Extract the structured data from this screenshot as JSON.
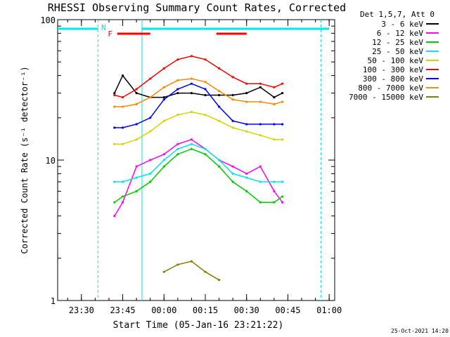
{
  "chart_data": {
    "type": "line",
    "title": "RHESSI Observing Summary Count Rates, Corrected",
    "xlabel": "Start Time (05-Jan-16 23:21:22)",
    "ylabel": "Corrected Count Rate (s⁻¹ detector⁻¹)",
    "y_scale": "log",
    "ylim": [
      1,
      100
    ],
    "xlim": [
      "05-Jan-16 23:21:22",
      "06-Jan-16 01:02:00"
    ],
    "x_ticks": [
      "23:30",
      "23:45",
      "00:00",
      "00:15",
      "00:30",
      "00:45",
      "01:00"
    ],
    "y_ticks": [
      "1",
      "10",
      "100"
    ],
    "grid": false,
    "legend_title": "Det 1,5,7, Att 0",
    "legend_position": "top-right",
    "footer_date": "25-Oct-2021 14:20",
    "markers": {
      "flare_label": "F",
      "night_label": "N",
      "flare_intervals": [
        [
          "23:43",
          "23:55"
        ],
        [
          "00:19",
          "00:30"
        ]
      ],
      "night_intervals": [
        [
          "23:21:22",
          "23:36"
        ],
        [
          "23:52",
          "01:00"
        ]
      ],
      "saa_lines_solid": [
        "23:52"
      ],
      "saa_lines_dashed": [
        "23:36",
        "00:57"
      ]
    },
    "x_samples": [
      "23:42",
      "23:45",
      "23:50",
      "23:55",
      "00:00",
      "00:05",
      "00:10",
      "00:15",
      "00:20",
      "00:25",
      "00:30",
      "00:35",
      "00:40",
      "00:43"
    ],
    "series": [
      {
        "name": "3 - 6 keV",
        "color": "#000000",
        "values": [
          30,
          40,
          30,
          28,
          28,
          30,
          30,
          29,
          29,
          29,
          30,
          33,
          28,
          30
        ]
      },
      {
        "name": "6 - 12 keV",
        "color": "#ff00ff",
        "values": [
          4,
          5,
          9,
          10,
          11,
          13,
          14,
          12,
          10,
          9,
          8,
          9,
          6,
          5
        ]
      },
      {
        "name": "12 - 25 keV",
        "color": "#00cc00",
        "values": [
          5,
          5.5,
          6,
          7,
          9,
          11,
          12,
          11,
          9,
          7,
          6,
          5,
          5,
          5.5
        ]
      },
      {
        "name": "25 - 50 keV",
        "color": "#00e5e5",
        "values": [
          7,
          7,
          7.5,
          8,
          10,
          12,
          13,
          12,
          10,
          8,
          7.5,
          7,
          7,
          7
        ]
      },
      {
        "name": "50 - 100 keV",
        "color": "#d4d400",
        "values": [
          13,
          13,
          14,
          16,
          19,
          21,
          22,
          21,
          19,
          17,
          16,
          15,
          14,
          14
        ]
      },
      {
        "name": "100 - 300 keV",
        "color": "#ff0000",
        "values": [
          29,
          28,
          32,
          38,
          45,
          52,
          55,
          52,
          45,
          39,
          35,
          35,
          33,
          35
        ]
      },
      {
        "name": "300 - 800 keV",
        "color": "#0000ff",
        "values": [
          17,
          17,
          18,
          20,
          27,
          32,
          35,
          32,
          24,
          19,
          18,
          18,
          18,
          18
        ]
      },
      {
        "name": "800 - 7000 keV",
        "color": "#ff8800",
        "values": [
          24,
          24,
          25,
          28,
          33,
          37,
          38,
          36,
          31,
          27,
          26,
          26,
          25,
          26
        ]
      },
      {
        "name": "7000 - 15000 keV",
        "color": "#808000",
        "values": [
          null,
          null,
          null,
          null,
          1.6,
          1.8,
          1.9,
          1.6,
          1.4,
          null,
          null,
          null,
          null,
          null
        ]
      }
    ]
  }
}
